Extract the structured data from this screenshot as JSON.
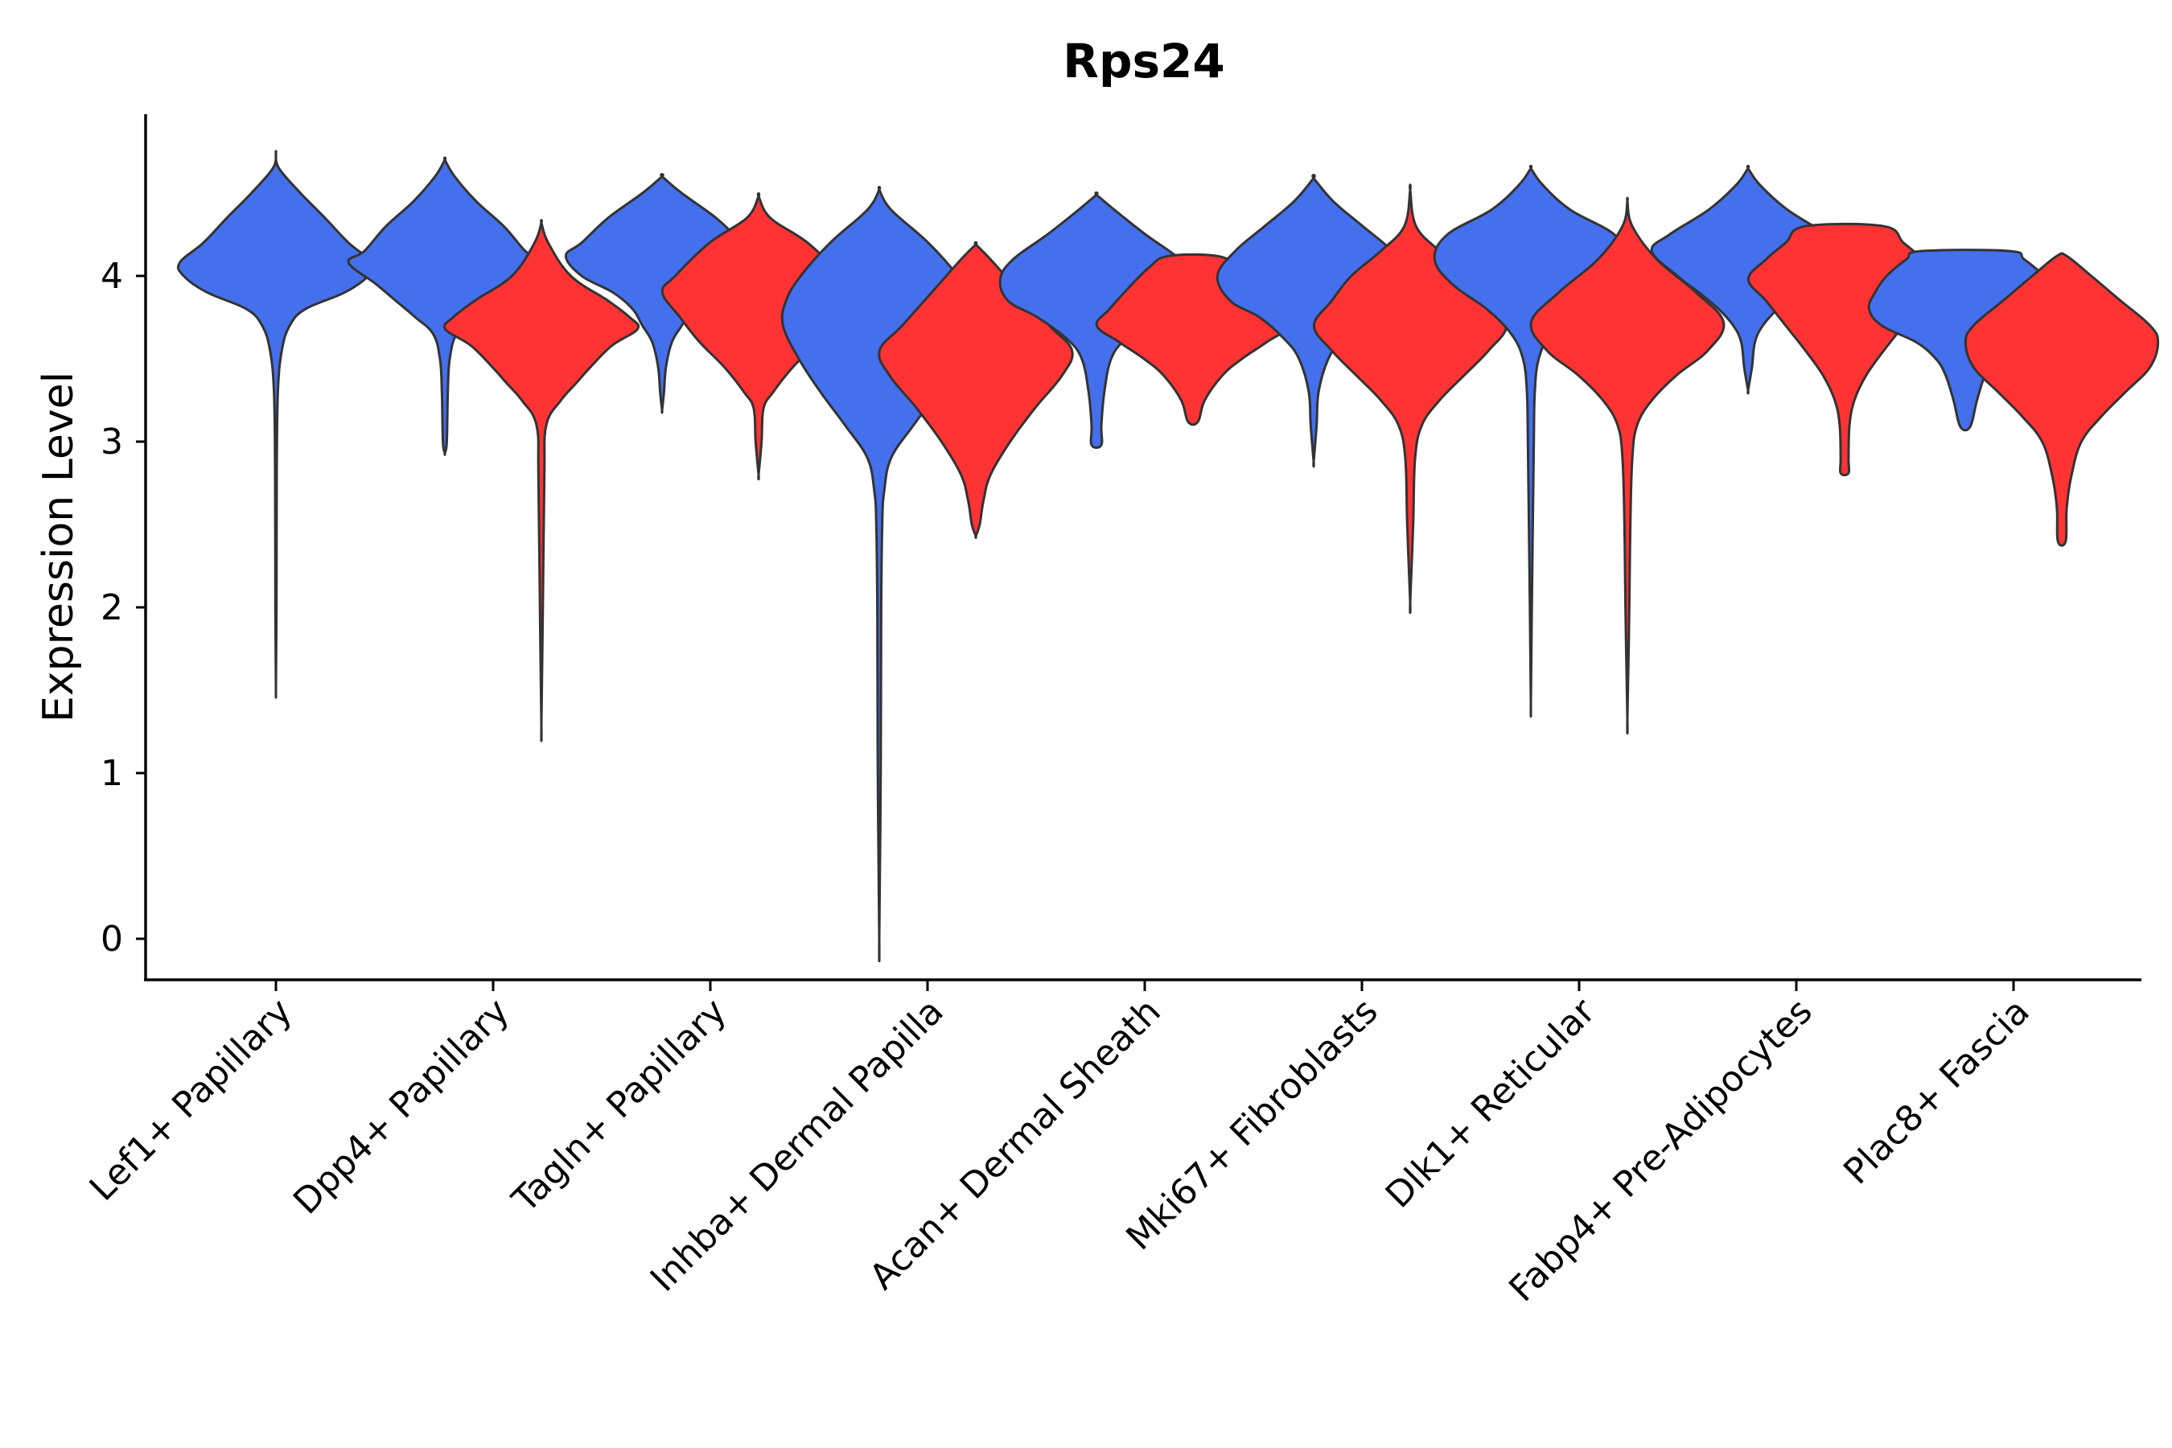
{
  "chart_data": {
    "type": "violin",
    "title": "Rps24",
    "xlabel": "",
    "ylabel": "Expression Level",
    "ylim": [
      -0.25,
      5.0
    ],
    "yticks": [
      0,
      1,
      2,
      3,
      4
    ],
    "categories": [
      "Lef1+ Papillary",
      "Dpp4+ Papillary",
      "Tagln+ Papillary",
      "Inhba+ Dermal Papilla",
      "Acan+ Dermal Sheath",
      "Mki67+ Fibroblasts",
      "Dlk1+ Reticular",
      "Fabp4+ Pre-Adipocytes",
      "Plac8+ Fascia"
    ],
    "colors": {
      "group_1": "#4470ED",
      "group_2": "#FF3333"
    },
    "groups": [
      "group_1",
      "group_2"
    ],
    "violins": [
      {
        "category": "Lef1+ Papillary",
        "group": "group_1",
        "min": 1.52,
        "max": 4.74,
        "profile": [
          [
            4.74,
            0.0
          ],
          [
            4.65,
            0.03
          ],
          [
            4.5,
            0.25
          ],
          [
            4.35,
            0.5
          ],
          [
            4.2,
            0.74
          ],
          [
            4.08,
            0.98
          ],
          [
            4.0,
            0.94
          ],
          [
            3.9,
            0.7
          ],
          [
            3.8,
            0.3
          ],
          [
            3.7,
            0.14
          ],
          [
            3.55,
            0.06
          ],
          [
            3.3,
            0.02
          ],
          [
            2.8,
            0.008
          ],
          [
            2.0,
            0.006
          ],
          [
            1.52,
            0.0
          ]
        ]
      },
      {
        "category": "Dpp4+ Papillary",
        "group": "group_1",
        "min": 2.93,
        "max": 4.7,
        "profile": [
          [
            4.7,
            0.0
          ],
          [
            4.6,
            0.1
          ],
          [
            4.45,
            0.32
          ],
          [
            4.3,
            0.6
          ],
          [
            4.15,
            0.82
          ],
          [
            4.08,
            0.98
          ],
          [
            3.95,
            0.7
          ],
          [
            3.85,
            0.5
          ],
          [
            3.75,
            0.3
          ],
          [
            3.65,
            0.12
          ],
          [
            3.5,
            0.05
          ],
          [
            3.3,
            0.03
          ],
          [
            3.0,
            0.02
          ],
          [
            2.93,
            0.0
          ]
        ]
      },
      {
        "category": "Dpp4+ Papillary",
        "group": "group_2",
        "min": 1.29,
        "max": 4.32,
        "profile": [
          [
            4.32,
            0.0
          ],
          [
            4.2,
            0.07
          ],
          [
            4.0,
            0.3
          ],
          [
            3.85,
            0.68
          ],
          [
            3.75,
            0.9
          ],
          [
            3.68,
            0.98
          ],
          [
            3.58,
            0.72
          ],
          [
            3.45,
            0.5
          ],
          [
            3.35,
            0.35
          ],
          [
            3.25,
            0.2
          ],
          [
            3.1,
            0.05
          ],
          [
            2.8,
            0.03
          ],
          [
            2.0,
            0.015
          ],
          [
            1.29,
            0.0
          ]
        ]
      },
      {
        "category": "Tagln+ Papillary",
        "group": "group_1",
        "min": 3.19,
        "max": 4.6,
        "profile": [
          [
            4.6,
            0.0
          ],
          [
            4.5,
            0.2
          ],
          [
            4.35,
            0.55
          ],
          [
            4.2,
            0.82
          ],
          [
            4.12,
            0.98
          ],
          [
            4.0,
            0.82
          ],
          [
            3.9,
            0.5
          ],
          [
            3.8,
            0.3
          ],
          [
            3.7,
            0.2
          ],
          [
            3.6,
            0.1
          ],
          [
            3.45,
            0.04
          ],
          [
            3.3,
            0.02
          ],
          [
            3.19,
            0.0
          ]
        ]
      },
      {
        "category": "Tagln+ Papillary",
        "group": "group_2",
        "min": 2.8,
        "max": 4.48,
        "profile": [
          [
            4.48,
            0.0
          ],
          [
            4.35,
            0.12
          ],
          [
            4.2,
            0.5
          ],
          [
            4.0,
            0.85
          ],
          [
            3.9,
            0.98
          ],
          [
            3.75,
            0.8
          ],
          [
            3.6,
            0.6
          ],
          [
            3.45,
            0.35
          ],
          [
            3.3,
            0.15
          ],
          [
            3.2,
            0.05
          ],
          [
            3.0,
            0.03
          ],
          [
            2.8,
            0.0
          ]
        ]
      },
      {
        "category": "Inhba+ Dermal Papilla",
        "group": "group_1",
        "min": 0.0,
        "max": 4.52,
        "profile": [
          [
            4.52,
            0.0
          ],
          [
            4.4,
            0.12
          ],
          [
            4.2,
            0.5
          ],
          [
            4.0,
            0.8
          ],
          [
            3.85,
            0.95
          ],
          [
            3.7,
            0.98
          ],
          [
            3.5,
            0.82
          ],
          [
            3.3,
            0.6
          ],
          [
            3.1,
            0.35
          ],
          [
            2.9,
            0.12
          ],
          [
            2.7,
            0.05
          ],
          [
            2.5,
            0.03
          ],
          [
            2.0,
            0.02
          ],
          [
            1.0,
            0.015
          ],
          [
            0.0,
            0.0
          ]
        ]
      },
      {
        "category": "Inhba+ Dermal Papilla",
        "group": "group_2",
        "min": 2.43,
        "max": 4.19,
        "profile": [
          [
            4.19,
            0.0
          ],
          [
            4.1,
            0.15
          ],
          [
            3.9,
            0.45
          ],
          [
            3.7,
            0.75
          ],
          [
            3.55,
            0.98
          ],
          [
            3.4,
            0.88
          ],
          [
            3.2,
            0.6
          ],
          [
            3.0,
            0.35
          ],
          [
            2.8,
            0.15
          ],
          [
            2.65,
            0.08
          ],
          [
            2.5,
            0.04
          ],
          [
            2.43,
            0.0
          ]
        ]
      },
      {
        "category": "Acan+ Dermal Sheath",
        "group": "group_1",
        "min": 2.98,
        "max": 4.49,
        "profile": [
          [
            4.49,
            0.0
          ],
          [
            4.4,
            0.18
          ],
          [
            4.25,
            0.5
          ],
          [
            4.1,
            0.85
          ],
          [
            3.98,
            0.98
          ],
          [
            3.85,
            0.9
          ],
          [
            3.75,
            0.6
          ],
          [
            3.62,
            0.3
          ],
          [
            3.5,
            0.15
          ],
          [
            3.3,
            0.08
          ],
          [
            3.1,
            0.05
          ],
          [
            2.98,
            0.05
          ]
        ]
      },
      {
        "category": "Acan+ Dermal Sheath",
        "group": "group_2",
        "min": 3.12,
        "max": 4.12,
        "profile": [
          [
            4.12,
            0.25
          ],
          [
            4.05,
            0.45
          ],
          [
            3.9,
            0.7
          ],
          [
            3.8,
            0.85
          ],
          [
            3.7,
            0.98
          ],
          [
            3.6,
            0.75
          ],
          [
            3.5,
            0.5
          ],
          [
            3.4,
            0.3
          ],
          [
            3.25,
            0.12
          ],
          [
            3.12,
            0.05
          ]
        ]
      },
      {
        "category": "Mki67+ Fibroblasts",
        "group": "group_1",
        "min": 2.88,
        "max": 4.59,
        "profile": [
          [
            4.59,
            0.0
          ],
          [
            4.45,
            0.2
          ],
          [
            4.3,
            0.5
          ],
          [
            4.15,
            0.8
          ],
          [
            4.0,
            0.98
          ],
          [
            3.85,
            0.85
          ],
          [
            3.75,
            0.55
          ],
          [
            3.62,
            0.3
          ],
          [
            3.5,
            0.15
          ],
          [
            3.3,
            0.05
          ],
          [
            3.1,
            0.03
          ],
          [
            2.88,
            0.0
          ]
        ]
      },
      {
        "category": "Mki67+ Fibroblasts",
        "group": "group_2",
        "min": 2.03,
        "max": 4.52,
        "profile": [
          [
            4.52,
            0.0
          ],
          [
            4.3,
            0.06
          ],
          [
            4.15,
            0.3
          ],
          [
            4.0,
            0.6
          ],
          [
            3.85,
            0.8
          ],
          [
            3.7,
            0.98
          ],
          [
            3.55,
            0.8
          ],
          [
            3.4,
            0.55
          ],
          [
            3.25,
            0.3
          ],
          [
            3.1,
            0.12
          ],
          [
            2.9,
            0.05
          ],
          [
            2.5,
            0.03
          ],
          [
            2.03,
            0.0
          ]
        ]
      },
      {
        "category": "Dlk1+ Reticular",
        "group": "group_1",
        "min": 1.42,
        "max": 4.65,
        "profile": [
          [
            4.65,
            0.0
          ],
          [
            4.55,
            0.12
          ],
          [
            4.4,
            0.4
          ],
          [
            4.25,
            0.85
          ],
          [
            4.1,
            0.98
          ],
          [
            3.95,
            0.8
          ],
          [
            3.8,
            0.45
          ],
          [
            3.65,
            0.2
          ],
          [
            3.5,
            0.08
          ],
          [
            3.3,
            0.04
          ],
          [
            3.0,
            0.03
          ],
          [
            2.5,
            0.02
          ],
          [
            2.0,
            0.01
          ],
          [
            1.42,
            0.0
          ]
        ]
      },
      {
        "category": "Dlk1+ Reticular",
        "group": "group_2",
        "min": 1.33,
        "max": 4.45,
        "profile": [
          [
            4.45,
            0.0
          ],
          [
            4.3,
            0.05
          ],
          [
            4.1,
            0.3
          ],
          [
            3.9,
            0.7
          ],
          [
            3.72,
            0.98
          ],
          [
            3.55,
            0.82
          ],
          [
            3.4,
            0.5
          ],
          [
            3.25,
            0.25
          ],
          [
            3.1,
            0.1
          ],
          [
            2.9,
            0.05
          ],
          [
            2.5,
            0.03
          ],
          [
            2.0,
            0.02
          ],
          [
            1.33,
            0.0
          ]
        ]
      },
      {
        "category": "Fabp4+ Pre-Adipocytes",
        "group": "group_1",
        "min": 3.31,
        "max": 4.65,
        "profile": [
          [
            4.65,
            0.0
          ],
          [
            4.55,
            0.12
          ],
          [
            4.4,
            0.4
          ],
          [
            4.25,
            0.8
          ],
          [
            4.15,
            0.98
          ],
          [
            4.0,
            0.72
          ],
          [
            3.9,
            0.5
          ],
          [
            3.8,
            0.3
          ],
          [
            3.7,
            0.15
          ],
          [
            3.6,
            0.07
          ],
          [
            3.45,
            0.04
          ],
          [
            3.31,
            0.0
          ]
        ]
      },
      {
        "category": "Fabp4+ Pre-Adipocytes",
        "group": "group_2",
        "min": 2.81,
        "max": 4.3,
        "profile": [
          [
            4.3,
            0.4
          ],
          [
            4.2,
            0.6
          ],
          [
            4.1,
            0.8
          ],
          [
            3.98,
            0.98
          ],
          [
            3.85,
            0.8
          ],
          [
            3.7,
            0.6
          ],
          [
            3.55,
            0.4
          ],
          [
            3.4,
            0.22
          ],
          [
            3.25,
            0.1
          ],
          [
            3.1,
            0.05
          ],
          [
            2.9,
            0.04
          ],
          [
            2.81,
            0.04
          ]
        ]
      },
      {
        "category": "Plac8+ Fascia",
        "group": "group_1",
        "min": 3.09,
        "max": 4.15,
        "profile": [
          [
            4.15,
            0.45
          ],
          [
            4.1,
            0.6
          ],
          [
            4.0,
            0.8
          ],
          [
            3.9,
            0.92
          ],
          [
            3.8,
            0.98
          ],
          [
            3.7,
            0.85
          ],
          [
            3.6,
            0.5
          ],
          [
            3.5,
            0.3
          ],
          [
            3.4,
            0.2
          ],
          [
            3.25,
            0.12
          ],
          [
            3.09,
            0.05
          ]
        ]
      },
      {
        "category": "Plac8+ Fascia",
        "group": "group_2",
        "min": 2.4,
        "max": 4.12,
        "profile": [
          [
            4.12,
            0.05
          ],
          [
            4.0,
            0.3
          ],
          [
            3.85,
            0.6
          ],
          [
            3.7,
            0.9
          ],
          [
            3.6,
            0.98
          ],
          [
            3.45,
            0.9
          ],
          [
            3.3,
            0.65
          ],
          [
            3.15,
            0.4
          ],
          [
            3.0,
            0.2
          ],
          [
            2.8,
            0.1
          ],
          [
            2.6,
            0.05
          ],
          [
            2.4,
            0.04
          ]
        ]
      }
    ]
  }
}
